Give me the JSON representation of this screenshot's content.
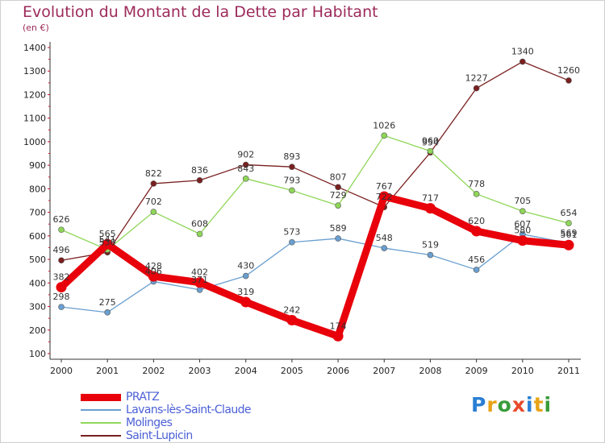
{
  "chart_data": {
    "type": "line",
    "title": "Evolution du Montant de la Dette par Habitant",
    "subtitle": "(en €)",
    "x": [
      "2000",
      "2001",
      "2002",
      "2003",
      "2004",
      "2005",
      "2006",
      "2007",
      "2008",
      "2009",
      "2010",
      "2011"
    ],
    "ylim": [
      100,
      1400
    ],
    "yticks": [
      100,
      200,
      300,
      400,
      500,
      600,
      700,
      800,
      900,
      1000,
      1100,
      1200,
      1300,
      1400
    ],
    "grid": false,
    "legend_position": "bottom-left",
    "series": [
      {
        "name": "PRATZ",
        "color": "#e8000b",
        "values": [
          382,
          565,
          428,
          402,
          319,
          242,
          174,
          767,
          717,
          620,
          580,
          561
        ]
      },
      {
        "name": "Lavans-lès-Saint-Claude",
        "color": "#6a9fd0",
        "values": [
          298,
          275,
          406,
          371,
          430,
          573,
          589,
          548,
          519,
          456,
          607,
          569
        ]
      },
      {
        "name": "Molinges",
        "color": "#8fd658",
        "values": [
          626,
          541,
          702,
          608,
          843,
          793,
          729,
          1026,
          960,
          778,
          705,
          654
        ]
      },
      {
        "name": "Saint-Lupicin",
        "color": "#7a1f1f",
        "values": [
          496,
          530,
          822,
          836,
          902,
          893,
          807,
          722,
          954,
          1227,
          1340,
          1260
        ]
      }
    ]
  },
  "logo": {
    "letters": [
      "P",
      "r",
      "o",
      "x",
      "i",
      "t",
      "i"
    ],
    "colors": [
      "#2a7fd4",
      "#e8a317",
      "#3a9c3a",
      "#e84a2a",
      "#2a7fd4",
      "#e8a317",
      "#3a9c3a"
    ]
  }
}
